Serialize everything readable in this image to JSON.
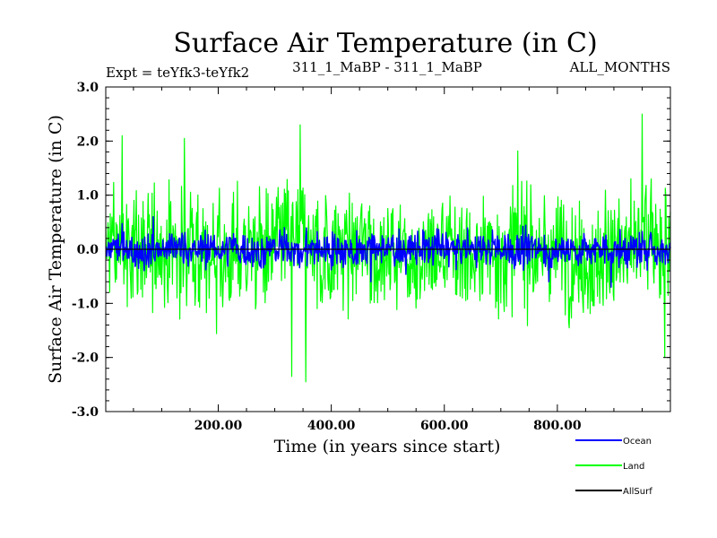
{
  "chart_data": {
    "type": "line",
    "title": "Surface Air Temperature (in C)",
    "subtitle_left": "Expt = teYfk3-teYfk2",
    "subtitle_center": "311_1_MaBP - 311_1_MaBP",
    "subtitle_right": "ALL_MONTHS",
    "xlabel": "Time (in years since start)",
    "ylabel": "Surface Air Temperature (in C)",
    "xlim": [
      1,
      1000
    ],
    "ylim": [
      -3.0,
      3.0
    ],
    "xticks": [
      200,
      400,
      600,
      800
    ],
    "xtick_labels": [
      "200.00",
      "400.00",
      "600.00",
      "800.00"
    ],
    "yticks": [
      3.0,
      2.0,
      1.0,
      0.0,
      -1.0,
      -2.0,
      -3.0
    ],
    "ytick_labels": [
      "3.0",
      "2.0",
      "1.0",
      "0.0",
      "-1.0",
      "-2.0",
      "-3.0"
    ],
    "series": [
      {
        "name": "Land",
        "color": "#00ff00",
        "approx_amplitude": 1.0,
        "notable_points": [
          {
            "x": 30,
            "y": 2.1
          },
          {
            "x": 140,
            "y": 2.05
          },
          {
            "x": 345,
            "y": 2.3
          },
          {
            "x": 950,
            "y": 2.5
          },
          {
            "x": 330,
            "y": -2.35
          },
          {
            "x": 355,
            "y": -2.45
          },
          {
            "x": 990,
            "y": -2.0
          }
        ]
      },
      {
        "name": "Ocean",
        "color": "#0000ff",
        "approx_amplitude": 0.3,
        "notable_points": [
          {
            "x": 85,
            "y": 0.6
          },
          {
            "x": 470,
            "y": -0.6
          },
          {
            "x": 785,
            "y": -0.6
          },
          {
            "x": 895,
            "y": -0.7
          }
        ]
      },
      {
        "name": "AllSurf",
        "color": "#000000",
        "values": [
          [
            1,
            0.0
          ],
          [
            1000,
            0.0
          ]
        ]
      }
    ],
    "legend": [
      "Ocean",
      "Land",
      "AllSurf"
    ],
    "legend_position": "bottom-right"
  }
}
